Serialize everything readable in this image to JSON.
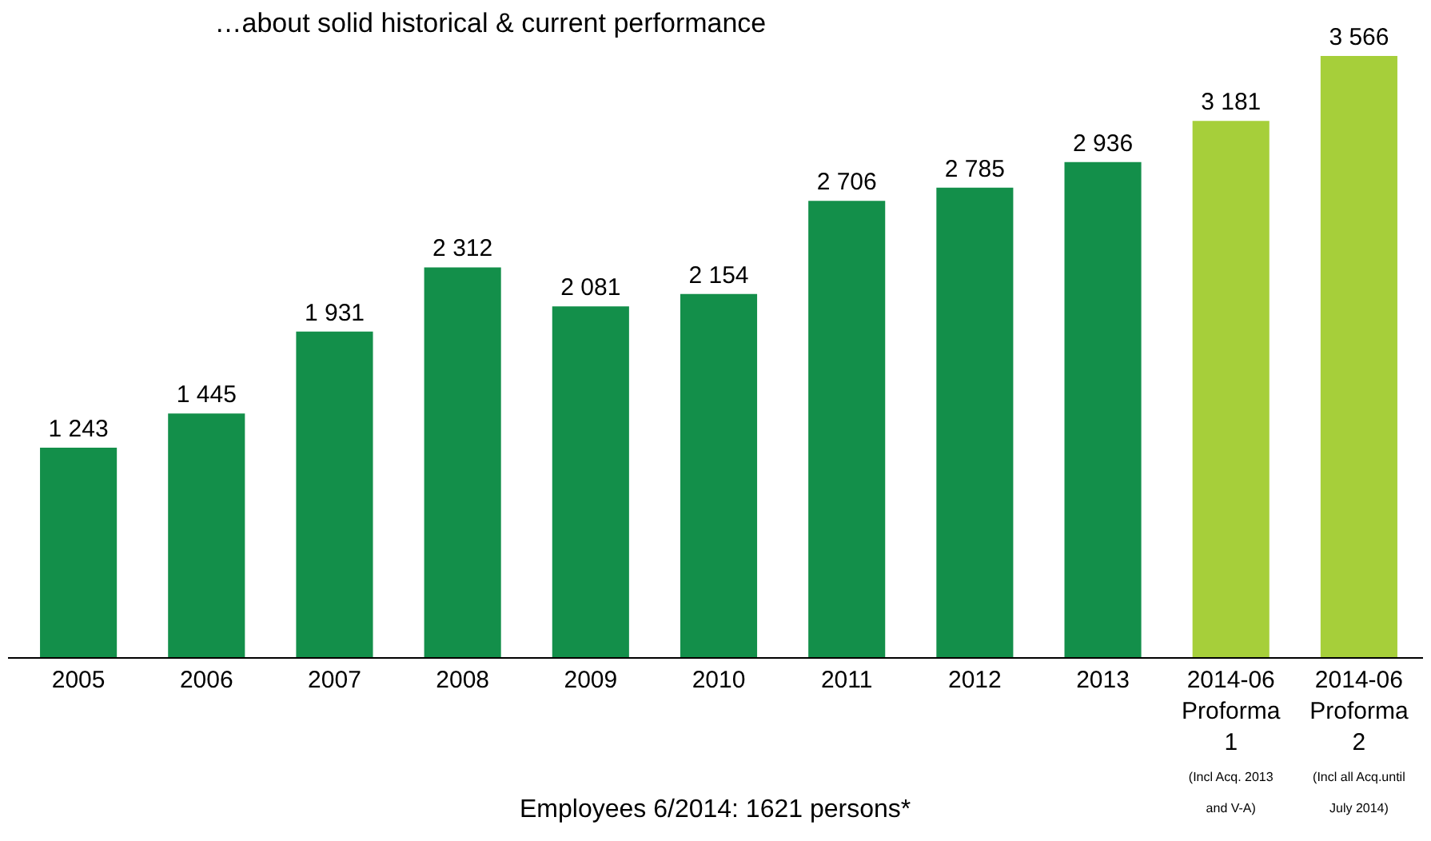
{
  "chart_data": {
    "type": "bar",
    "title": "…about solid historical & current performance",
    "categories": [
      "2005",
      "2006",
      "2007",
      "2008",
      "2009",
      "2010",
      "2011",
      "2012",
      "2013",
      "2014-06\nProforma\n1\n(Incl Acq. 2013\nand V-A)",
      "2014-06\nProforma\n2\n(Incl all Acq.until\nJuly 2014)"
    ],
    "values": [
      1243,
      1445,
      1931,
      2312,
      2081,
      2154,
      2706,
      2785,
      2936,
      3181,
      3566
    ],
    "value_labels": [
      "1 243",
      "1 445",
      "1 931",
      "2 312",
      "2 081",
      "2 154",
      "2 706",
      "2 785",
      "2 936",
      "3 181",
      "3 566"
    ],
    "colors": [
      "#138f4a",
      "#138f4a",
      "#138f4a",
      "#138f4a",
      "#138f4a",
      "#138f4a",
      "#138f4a",
      "#138f4a",
      "#138f4a",
      "#a6cf3a",
      "#a6cf3a"
    ],
    "ylim": [
      0,
      3566
    ],
    "annotations": [
      "Employees 6/2014: 1621 persons*"
    ]
  }
}
